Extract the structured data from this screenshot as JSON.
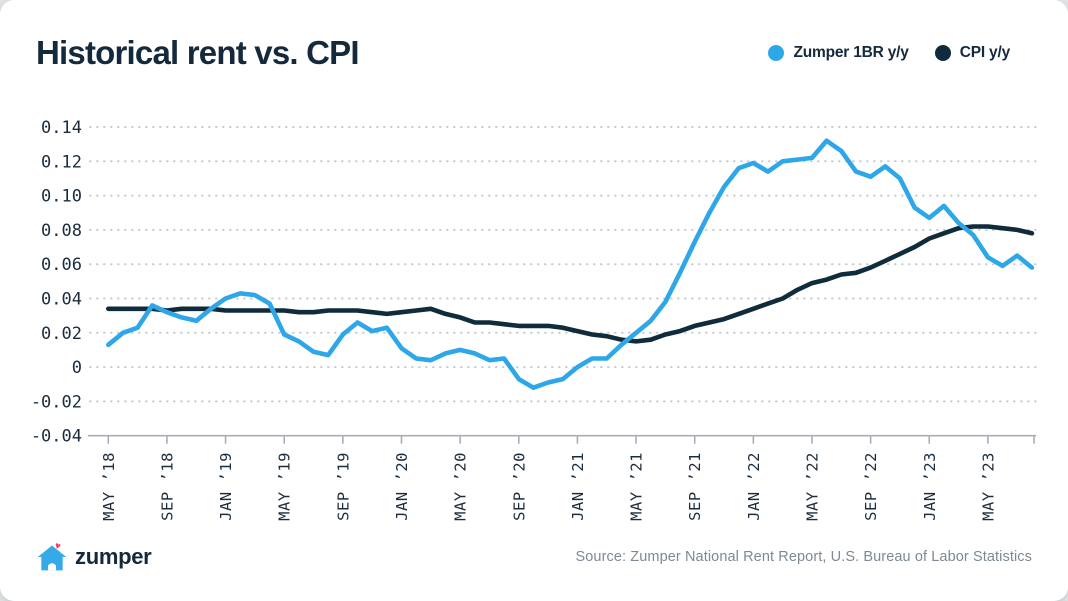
{
  "header": {
    "title": "Historical rent vs. CPI"
  },
  "footer": {
    "logo_text": "zumper",
    "logo_icon": "zumper-house-heart-logo",
    "source": "Source: Zumper National Rent Report, U.S. Bureau of Labor Statistics"
  },
  "colors": {
    "zumper_blue": "#2ea7e9",
    "cpi_navy": "#0f2b3c",
    "text_navy": "#14293c",
    "grid_gray": "#c7ccd1",
    "axis_gray": "#a7aeb4",
    "source_gray": "#7e8994",
    "logo_heart_pink": "#f4406f"
  },
  "chart_data": {
    "type": "line",
    "title": "Historical rent vs. CPI",
    "x_unit": "month",
    "grid": "horizontal-dotted",
    "legend_position": "top-right",
    "ylim": [
      -0.04,
      0.14
    ],
    "y_ticks": [
      0.14,
      0.12,
      0.1,
      0.08,
      0.06,
      0.04,
      0.02,
      0,
      -0.02,
      -0.04
    ],
    "y_tick_labels": [
      "0.14",
      "0.12",
      "0.10",
      "0.08",
      "0.06",
      "0.04",
      "0.02",
      "0",
      "-0.02",
      "-0.04"
    ],
    "x_tick_indices": [
      0,
      4,
      8,
      12,
      16,
      20,
      24,
      28,
      32,
      36,
      40,
      44,
      48,
      52,
      56,
      60
    ],
    "categories": [
      "MAY ’18",
      "JUN ’18",
      "JUL ’18",
      "AUG ’18",
      "SEP ’18",
      "OCT ’18",
      "NOV ’18",
      "DEC ’18",
      "JAN ’19",
      "FEB ’19",
      "MAR ’19",
      "APR ’19",
      "MAY ’19",
      "JUN ’19",
      "JUL ’19",
      "AUG ’19",
      "SEP ’19",
      "OCT ’19",
      "NOV ’19",
      "DEC ’19",
      "JAN ’20",
      "FEB ’20",
      "MAR ’20",
      "APR ’20",
      "MAY ’20",
      "JUN ’20",
      "JUL ’20",
      "AUG ’20",
      "SEP ’20",
      "OCT ’20",
      "NOV ’20",
      "DEC ’20",
      "JAN ’21",
      "FEB ’21",
      "MAR ’21",
      "APR ’21",
      "MAY ’21",
      "JUN ’21",
      "JUL ’21",
      "AUG ’21",
      "SEP ’21",
      "OCT ’21",
      "NOV ’21",
      "DEC ’21",
      "JAN ’22",
      "FEB ’22",
      "MAR ’22",
      "APR ’22",
      "MAY ’22",
      "JUN ’22",
      "JUL ’22",
      "AUG ’22",
      "SEP ’22",
      "OCT ’22",
      "NOV ’22",
      "DEC ’22",
      "JAN ’23",
      "FEB ’23",
      "MAR ’23",
      "APR ’23",
      "MAY ’23",
      "JUN ’23",
      "JUL ’23",
      "AUG ’23"
    ],
    "series": [
      {
        "name": "Zumper 1BR y/y",
        "color": "#2ea7e9",
        "values": [
          0.013,
          0.02,
          0.023,
          0.036,
          0.032,
          0.029,
          0.027,
          0.034,
          0.04,
          0.043,
          0.042,
          0.037,
          0.019,
          0.015,
          0.009,
          0.007,
          0.019,
          0.026,
          0.021,
          0.023,
          0.011,
          0.005,
          0.004,
          0.008,
          0.01,
          0.008,
          0.004,
          0.005,
          -0.007,
          -0.012,
          -0.009,
          -0.007,
          0.0,
          0.005,
          0.005,
          0.013,
          0.02,
          0.027,
          0.038,
          0.055,
          0.073,
          0.09,
          0.105,
          0.116,
          0.119,
          0.114,
          0.12,
          0.121,
          0.122,
          0.132,
          0.126,
          0.114,
          0.111,
          0.117,
          0.11,
          0.093,
          0.087,
          0.094,
          0.084,
          0.077,
          0.064,
          0.059,
          0.065,
          0.058
        ]
      },
      {
        "name": "CPI y/y",
        "color": "#0f2b3c",
        "values": [
          0.034,
          0.034,
          0.034,
          0.034,
          0.033,
          0.034,
          0.034,
          0.034,
          0.033,
          0.033,
          0.033,
          0.033,
          0.033,
          0.032,
          0.032,
          0.033,
          0.033,
          0.033,
          0.032,
          0.031,
          0.032,
          0.033,
          0.034,
          0.031,
          0.029,
          0.026,
          0.026,
          0.025,
          0.024,
          0.024,
          0.024,
          0.023,
          0.021,
          0.019,
          0.018,
          0.016,
          0.015,
          0.016,
          0.019,
          0.021,
          0.024,
          0.026,
          0.028,
          0.031,
          0.034,
          0.037,
          0.04,
          0.045,
          0.049,
          0.051,
          0.054,
          0.055,
          0.058,
          0.062,
          0.066,
          0.07,
          0.075,
          0.078,
          0.081,
          0.082,
          0.082,
          0.081,
          0.08,
          0.078
        ]
      }
    ]
  }
}
